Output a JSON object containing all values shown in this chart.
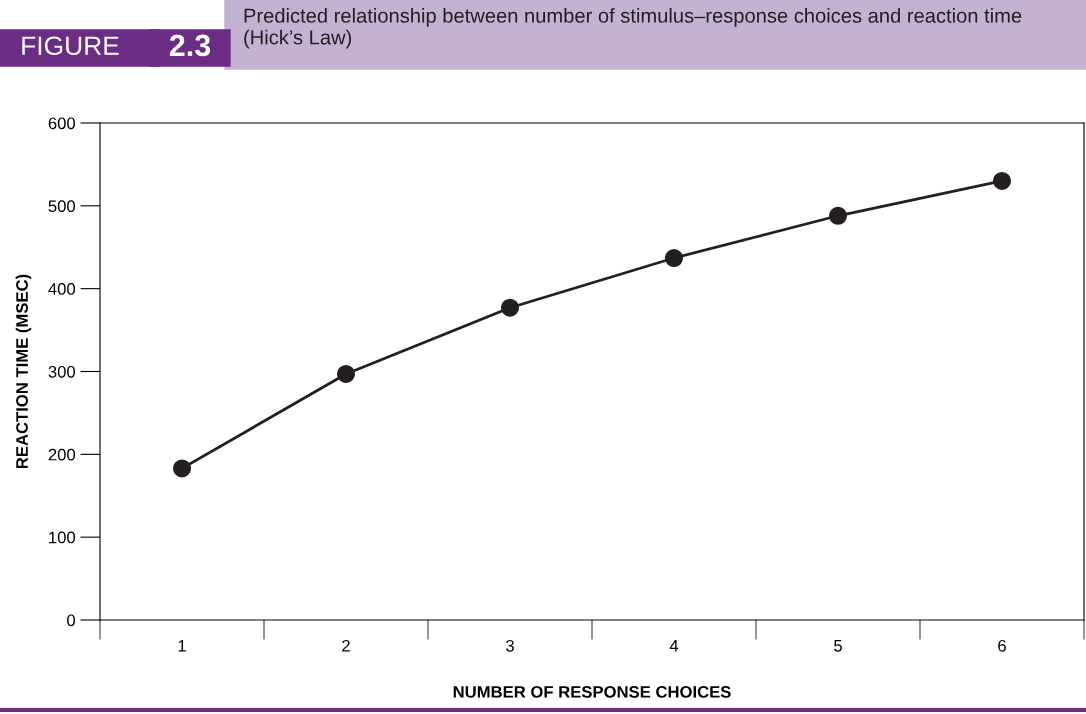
{
  "chart_data": {
    "type": "line",
    "title": "Predicted relationship between number of stimulus–response choices and reaction time (Hick’s Law)",
    "annotations": [
      "FIGURE",
      "2.3"
    ],
    "xlabel": "NUMBER OF RESPONSE CHOICES",
    "ylabel": "REACTION TIME (MSEC)",
    "categories": [
      "1",
      "2",
      "3",
      "4",
      "5",
      "6"
    ],
    "series": [
      {
        "color": "#231f20",
        "values": [
          183,
          297,
          377,
          437,
          488,
          530
        ]
      }
    ],
    "ylim": [
      0,
      600
    ],
    "yticks": [
      0,
      100,
      200,
      300,
      400,
      500,
      600
    ],
    "marker": "circle",
    "line_style": "solid",
    "grid": false,
    "legend": false
  }
}
